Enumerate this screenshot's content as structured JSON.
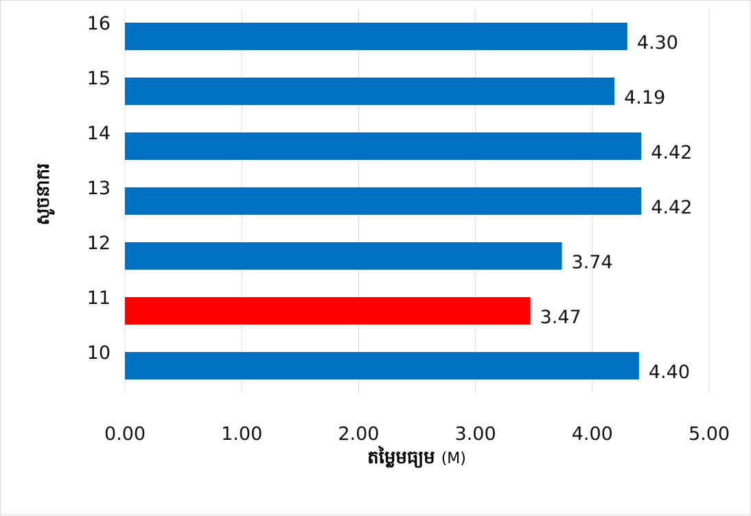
{
  "chart_data": {
    "type": "bar",
    "orientation": "horizontal",
    "categories": [
      "10",
      "11",
      "12",
      "13",
      "14",
      "15",
      "16"
    ],
    "values": [
      4.4,
      3.47,
      3.74,
      4.42,
      4.42,
      4.19,
      4.3
    ],
    "data_labels": [
      "4.40",
      "3.47",
      "3.74",
      "4.42",
      "4.42",
      "4.19",
      "4.30"
    ],
    "bar_colors": [
      "#0070c0",
      "#ff0000",
      "#0070c0",
      "#0070c0",
      "#0070c0",
      "#0070c0",
      "#0070c0"
    ],
    "xlim": [
      0,
      5
    ],
    "x_ticks": [
      "0.00",
      "1.00",
      "2.00",
      "3.00",
      "4.00",
      "5.00"
    ],
    "xlabel": "តម្លៃមធ្យម",
    "xlabel_unit": "(M)",
    "ylabel": "សូចនាករ",
    "grid": "vertical",
    "legend": "none"
  }
}
